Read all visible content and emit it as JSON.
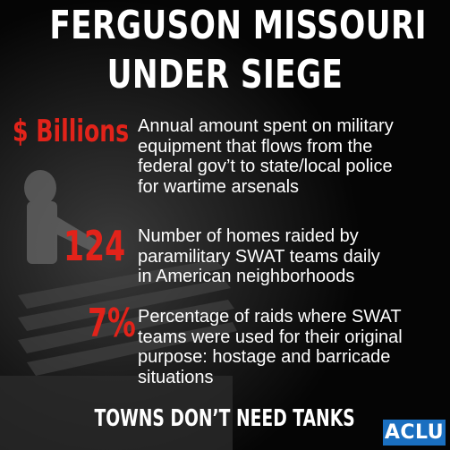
{
  "title": {
    "line1": "FERGUSON MISSOURI",
    "line2": "UNDER SIEGE"
  },
  "stats": [
    {
      "number": "$ Billions",
      "lines": [
        "Annual amount spent on military",
        "equipment that flows from the",
        "federal gov’t to state/local police",
        "for wartime arsenals"
      ]
    },
    {
      "number": "124",
      "lines": [
        "Number of homes raided by",
        "paramilitary SWAT teams daily",
        "in American neighborhoods"
      ]
    },
    {
      "number": "7%",
      "lines": [
        "Percentage of raids where SWAT",
        "teams were used for their original",
        "purpose: hostage and barricade",
        "situations"
      ]
    }
  ],
  "tagline": "TOWNS DON’T NEED TANKS",
  "logo": "ACLU",
  "colors": {
    "accent_red": "#e2231a",
    "logo_blue": "#1a6fc0",
    "background": "#050505",
    "text": "#ffffff"
  }
}
